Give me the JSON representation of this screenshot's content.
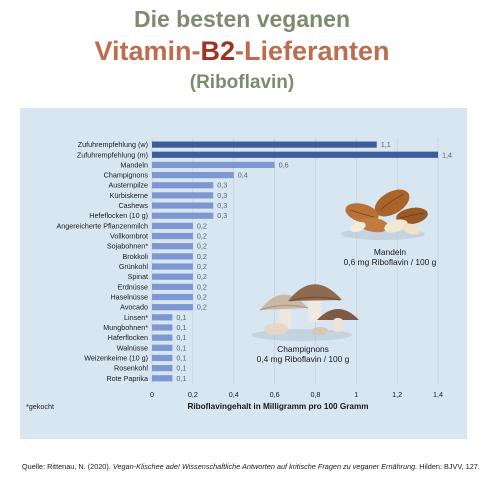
{
  "header": {
    "line1": "Die besten veganen",
    "line2_pre": "Vitamin-",
    "line2_b2": "B2",
    "line2_post": "-Lieferanten",
    "line3": "(Riboflavin)"
  },
  "chart_data": {
    "type": "bar",
    "orientation": "horizontal",
    "categories": [
      "Zufuhrempfehlung (w)",
      "Zufuhrempfehlung (m)",
      "Mandeln",
      "Champignons",
      "Austernpilze",
      "Kürbiskerne",
      "Cashews",
      "Hefeflocken (10 g)",
      "Angereicherte Pflanzenmilch",
      "Vollkornbrot",
      "Sojabohnen*",
      "Brokkoli",
      "Grünkohl",
      "Spinat",
      "Erdnüsse",
      "Haselnüsse",
      "Avocado",
      "Linsen*",
      "Mungbohnen*",
      "Haferflocken",
      "Walnüsse",
      "Weizenkeime (10 g)",
      "Rosenkohl",
      "Rote Paprika"
    ],
    "values": [
      1.1,
      1.4,
      0.6,
      0.4,
      0.3,
      0.3,
      0.3,
      0.3,
      0.2,
      0.2,
      0.2,
      0.2,
      0.2,
      0.2,
      0.2,
      0.2,
      0.2,
      0.1,
      0.1,
      0.1,
      0.1,
      0.1,
      0.1,
      0.1
    ],
    "value_labels": [
      "1,1",
      "1,4",
      "0,6",
      "0,4",
      "0,3",
      "0,3",
      "0,3",
      "0,3",
      "0,2",
      "0,2",
      "0,2",
      "0,2",
      "0,2",
      "0,2",
      "0,2",
      "0,2",
      "0,2",
      "0,1",
      "0,1",
      "0,1",
      "0,1",
      "0,1",
      "0,1",
      "0,1"
    ],
    "highlight_count": 2,
    "xlim": [
      0,
      1.6
    ],
    "xticks": [
      0,
      0.2,
      0.4,
      0.6,
      0.8,
      1,
      1.2,
      1.4
    ],
    "xtick_labels": [
      "0",
      "0,2",
      "0,4",
      "0,6",
      "0,8",
      "1",
      "1,2",
      "1,4"
    ],
    "xlabel": "Riboflavingehalt in Milligramm pro 100 Gramm",
    "grid": "vertical",
    "colors": {
      "highlight": "#3e5c9a",
      "bar": "#7d97d3",
      "grid": "#c0cad6"
    },
    "footnote": "*gekocht",
    "annotations": [
      {
        "line1": "Mandeln",
        "line2": "0,6 mg Riboflavin / 100 g",
        "icon": "almonds-icon"
      },
      {
        "line1": "Champignons",
        "line2": "0,4 mg Riboflavin / 100 g",
        "icon": "mushrooms-icon"
      }
    ]
  },
  "source": {
    "text_pre": "Quelle: Rittenau, N. (2020). ",
    "text_italic": "Vegan-Klischee ade! Wissenschaftliche Antworten auf kritische Fragen zu veganer Ernährung.",
    "text_post": " Hilden: BJVV, 127."
  }
}
